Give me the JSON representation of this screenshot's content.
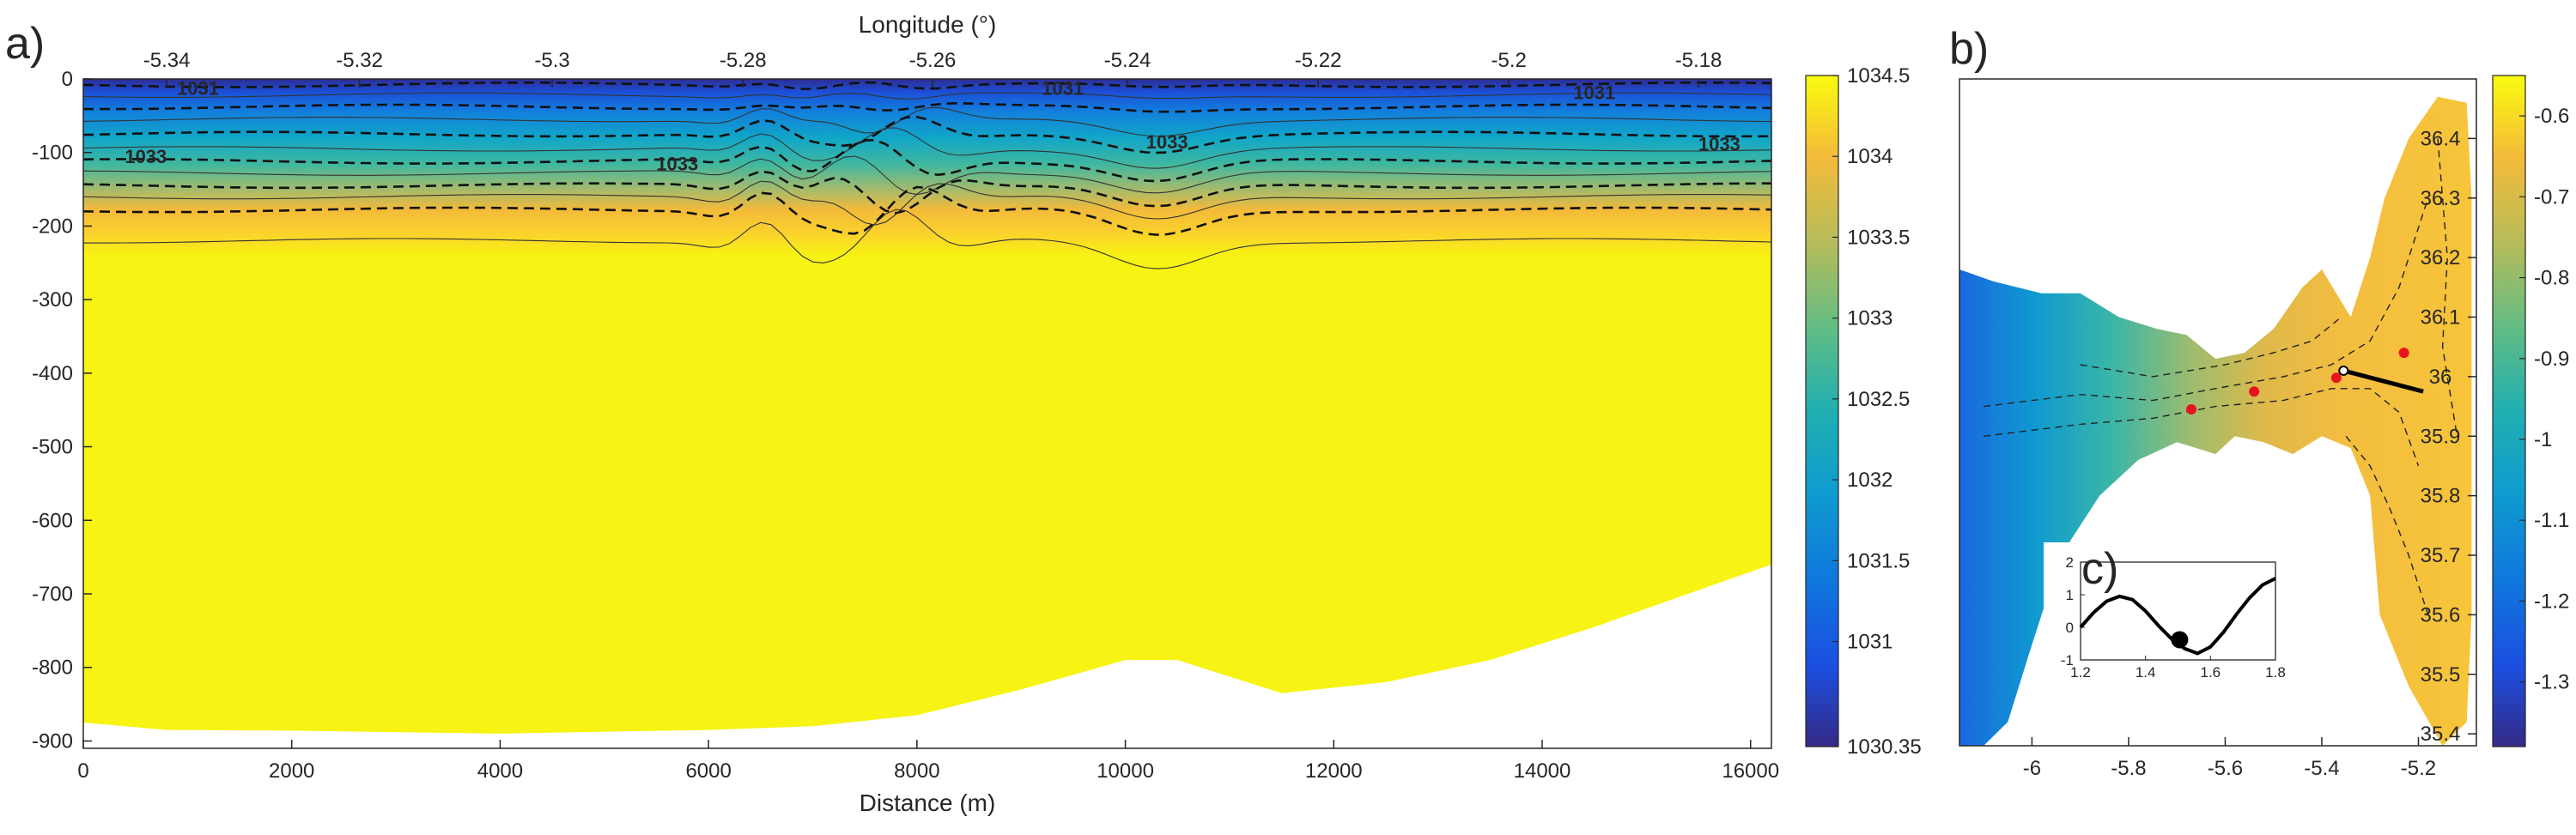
{
  "chart_data": [
    {
      "panel_label": "a)",
      "type": "heatmap",
      "xlabel": "Distance (m)",
      "ylabel": "",
      "x_top_label": "Longitude (°)",
      "xlim": [
        0,
        16200
      ],
      "ylim": [
        -910,
        0
      ],
      "x_ticks": [
        0,
        2000,
        4000,
        6000,
        8000,
        10000,
        12000,
        14000,
        16000
      ],
      "x_tick_labels": [
        "0",
        "2000",
        "4000",
        "6000",
        "8000",
        "10000",
        "12000",
        "14000",
        "16000"
      ],
      "y_ticks": [
        0,
        -100,
        -200,
        -300,
        -400,
        -500,
        -600,
        -700,
        -800,
        -900
      ],
      "y_tick_labels": [
        "0",
        "-100",
        "-200",
        "-300",
        "-400",
        "-500",
        "-600",
        "-700",
        "-800",
        "-900"
      ],
      "top_ticks_x": [
        800,
        2650,
        4500,
        6330,
        8150,
        10020,
        11850,
        13680,
        15500
      ],
      "top_tick_labels": [
        "-5.34",
        "-5.32",
        "-5.3",
        "-5.28",
        "-5.26",
        "-5.24",
        "-5.22",
        "-5.2",
        "-5.18"
      ],
      "contour_labels": [
        {
          "x": 1100,
          "y": -12,
          "text": "1031"
        },
        {
          "x": 9400,
          "y": -12,
          "text": "1031"
        },
        {
          "x": 14500,
          "y": -18,
          "text": "1031"
        },
        {
          "x": 600,
          "y": -105,
          "text": "1033"
        },
        {
          "x": 5700,
          "y": -115,
          "text": "1033"
        },
        {
          "x": 10400,
          "y": -85,
          "text": "1033"
        },
        {
          "x": 15700,
          "y": -88,
          "text": "1033"
        }
      ],
      "colorbar": {
        "min": 1030.35,
        "max": 1034.5,
        "ticks": [
          1030.35,
          1031,
          1031.5,
          1032,
          1032.5,
          1033,
          1033.5,
          1034,
          1034.5
        ],
        "tick_labels": [
          "1030.35",
          "1031",
          "1031.5",
          "1032",
          "1032.5",
          "1033",
          "1033.5",
          "1034",
          "1034.5"
        ],
        "colormap": "parula"
      },
      "bottom_depth": {
        "x": [
          0,
          800,
          2000,
          4000,
          6000,
          7000,
          8000,
          9000,
          10000,
          10500,
          11500,
          12500,
          13500,
          14500,
          15500,
          16200
        ],
        "y": [
          -875,
          -885,
          -886,
          -890,
          -885,
          -880,
          -865,
          -830,
          -790,
          -790,
          -835,
          -820,
          -790,
          -745,
          -695,
          -660
        ]
      }
    },
    {
      "panel_label": "b)",
      "type": "heatmap",
      "xlim": [
        -6.15,
        -5.08
      ],
      "ylim": [
        35.38,
        36.5
      ],
      "x_ticks": [
        -6,
        -5.8,
        -5.6,
        -5.4,
        -5.2
      ],
      "x_tick_labels": [
        "-6",
        "-5.8",
        "-5.6",
        "-5.4",
        "-5.2"
      ],
      "y_ticks": [
        35.4,
        35.5,
        35.6,
        35.7,
        35.8,
        35.9,
        36,
        36.1,
        36.2,
        36.3,
        36.4
      ],
      "y_tick_labels": [
        "35.4",
        "35.5",
        "35.6",
        "35.7",
        "35.8",
        "35.9",
        "36",
        "36.1",
        "36.2",
        "36.3",
        "36.4"
      ],
      "markers": [
        {
          "x": -5.67,
          "y": 35.945
        },
        {
          "x": -5.54,
          "y": 35.975
        },
        {
          "x": -5.37,
          "y": 35.998
        },
        {
          "x": -5.23,
          "y": 36.04
        }
      ],
      "transect": {
        "x1": -5.355,
        "y1": 36.01,
        "x2": -5.19,
        "y2": 35.975
      },
      "colorbar": {
        "min": -1.38,
        "max": -0.55,
        "ticks": [
          -1.3,
          -1.2,
          -1.1,
          -1,
          -0.9,
          -0.8,
          -0.7,
          -0.6
        ],
        "tick_labels": [
          "-1.3",
          "-1.2",
          "-1.1",
          "-1",
          "-0.9",
          "-0.8",
          "-0.7",
          "-0.6"
        ],
        "colormap": "parula"
      }
    },
    {
      "panel_label": "c)",
      "type": "line",
      "xlim": [
        1.2,
        1.8
      ],
      "ylim": [
        -1,
        2
      ],
      "x_ticks": [
        1.2,
        1.4,
        1.6,
        1.8
      ],
      "x_tick_labels": [
        "1.2",
        "1.4",
        "1.6",
        "1.8"
      ],
      "y_ticks": [
        -1,
        0,
        1,
        2
      ],
      "y_tick_labels": [
        "-1",
        "0",
        "1",
        "2"
      ],
      "series": [
        {
          "x": [
            1.2,
            1.24,
            1.28,
            1.32,
            1.36,
            1.4,
            1.44,
            1.48,
            1.52,
            1.56,
            1.6,
            1.64,
            1.68,
            1.72,
            1.76,
            1.8
          ],
          "y": [
            0.0,
            0.45,
            0.8,
            0.95,
            0.85,
            0.5,
            0.05,
            -0.35,
            -0.65,
            -0.8,
            -0.6,
            -0.15,
            0.4,
            0.9,
            1.3,
            1.5
          ]
        }
      ],
      "highlight_point": {
        "x": 1.505,
        "y": -0.38
      }
    }
  ]
}
